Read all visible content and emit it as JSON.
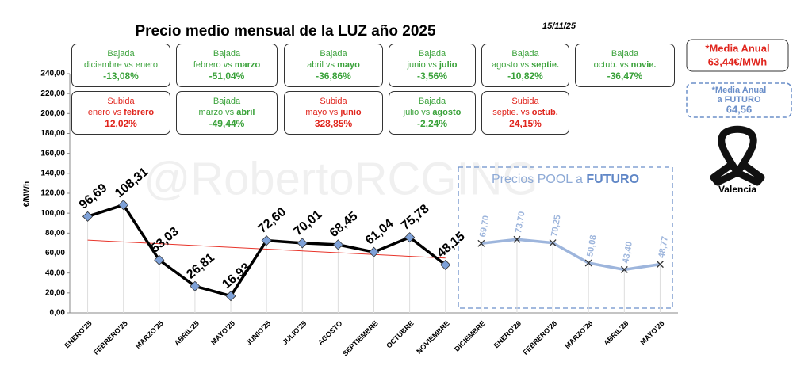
{
  "chart_data": {
    "type": "line",
    "title": "Precio medio mensual de la LUZ año 2025",
    "date": "15/11/25",
    "y_label": "€/MWh",
    "watermark": "@RobertoRCGING",
    "categories": [
      "ENERO'25",
      "FEBRERO'25",
      "MARZO'25",
      "ABRIL'25",
      "MAYO'25",
      "JUNIO'25",
      "JULIO'25",
      "AGOSTO",
      "SEPTIEMBRE",
      "OCTUBRE",
      "NOVIEMBRE",
      "DICIEMBRE",
      "ENERO'26",
      "FEBRERO'26",
      "MARZO'26",
      "ABRIL'26",
      "MAYO'26"
    ],
    "series": [
      {
        "color": "#000000",
        "marker_color": "#7ea1d8",
        "values": [
          96.69,
          108.31,
          53.03,
          26.81,
          16.93,
          72.6,
          70.01,
          68.45,
          61.04,
          75.78,
          48.15,
          null,
          null,
          null,
          null,
          null,
          null
        ],
        "value_labels": [
          "96,69",
          "108,31",
          "53,03",
          "26,81",
          "16,93",
          "72,60",
          "70,01",
          "68,45",
          "61,04",
          "75,78",
          "48,15",
          null,
          null,
          null,
          null,
          null,
          null
        ]
      },
      {
        "color": "#9db5dc",
        "marker_color": "#333333",
        "values": [
          null,
          null,
          null,
          null,
          null,
          null,
          null,
          null,
          null,
          null,
          null,
          69.7,
          73.7,
          70.25,
          50.08,
          43.4,
          48.77
        ],
        "value_labels": [
          null,
          null,
          null,
          null,
          null,
          null,
          null,
          null,
          null,
          null,
          null,
          "69,70",
          "73,70",
          "70,25",
          "50,08",
          "43,40",
          "48,77"
        ]
      }
    ],
    "trendline": {
      "color": "#e8342a",
      "values": [
        73,
        55
      ]
    },
    "ylim": [
      0,
      240
    ],
    "yticks": [
      {
        "value": 0,
        "label": "0,00"
      },
      {
        "value": 20,
        "label": "20,00"
      },
      {
        "value": 40,
        "label": "40,00"
      },
      {
        "value": 60,
        "label": "60,00"
      },
      {
        "value": 80,
        "label": "80,00"
      },
      {
        "value": 100,
        "label": "100,00"
      },
      {
        "value": 120,
        "label": "120,00"
      },
      {
        "value": 140,
        "label": "140,00"
      },
      {
        "value": 160,
        "label": "160,00"
      },
      {
        "value": 180,
        "label": "180,00"
      },
      {
        "value": 200,
        "label": "200,00"
      },
      {
        "value": 220,
        "label": "220,00"
      },
      {
        "value": 240,
        "label": "240,00"
      }
    ],
    "future_box": {
      "text": "Precios POOL a ",
      "bold": "FUTURO"
    },
    "boxes": [
      [
        {
          "kind": "Bajada",
          "color": "#3aa23a",
          "text": "diciembre vs enero",
          "pct": "-13,08%"
        },
        {
          "kind": "Bajada",
          "color": "#3aa23a",
          "text": "febrero vs ",
          "bold": "marzo",
          "pct": "-51,04%"
        },
        {
          "kind": "Bajada",
          "color": "#3aa23a",
          "text": "abril vs ",
          "bold": "mayo",
          "pct": "-36,86%"
        },
        {
          "kind": "Bajada",
          "color": "#3aa23a",
          "text": "junio vs ",
          "bold": "julio",
          "pct": "-3,56%"
        },
        {
          "kind": "Bajada",
          "color": "#3aa23a",
          "text": "agosto vs ",
          "bold": "septie.",
          "pct": "-10,82%"
        },
        {
          "kind": "Bajada",
          "color": "#3aa23a",
          "text": "octub. vs ",
          "bold": "novie.",
          "pct": "-36,47%"
        }
      ],
      [
        {
          "kind": "Subida",
          "color": "#e0261e",
          "text": "enero vs ",
          "bold": "febrero",
          "pct": "12,02%"
        },
        {
          "kind": "Bajada",
          "color": "#3aa23a",
          "text": "marzo vs ",
          "bold": "abril",
          "pct": "-49,44%"
        },
        {
          "kind": "Subida",
          "color": "#e0261e",
          "text": "mayo vs ",
          "bold": "junio",
          "pct": "328,85%"
        },
        {
          "kind": "Bajada",
          "color": "#3aa23a",
          "text": "julio vs ",
          "bold": "agosto",
          "pct": "-2,24%"
        },
        {
          "kind": "Subida",
          "color": "#e0261e",
          "text": "septie. vs ",
          "bold": "octub.",
          "pct": "24,15%"
        }
      ]
    ],
    "annual_average": {
      "label": "*Media Anual",
      "value": "63,44€/MWh"
    },
    "future_average": {
      "label": [
        "*Media Anual",
        "a FUTURO"
      ],
      "value": "64,56"
    },
    "ribbon_label": "Valencia"
  }
}
